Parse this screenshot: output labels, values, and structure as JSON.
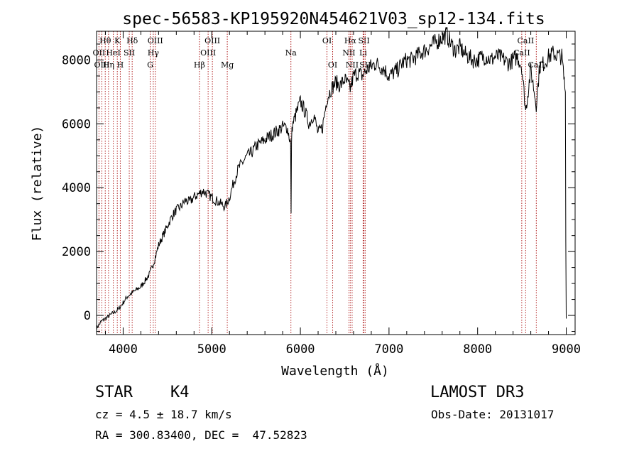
{
  "chart_data": {
    "type": "line",
    "title": "spec-56583-KP195920N454621V03_sp12-134.fits",
    "xlabel": "Wavelength (Å)",
    "ylabel": "Flux (relative)",
    "xlim": [
      3700,
      9100
    ],
    "ylim": [
      -600,
      8900
    ],
    "xticks": [
      4000,
      5000,
      6000,
      7000,
      8000,
      9000
    ],
    "yticks": [
      0,
      2000,
      4000,
      6000,
      8000
    ],
    "series": [
      {
        "name": "spectrum",
        "x": [
          3700,
          3750,
          3800,
          3850,
          3900,
          3950,
          4000,
          4050,
          4100,
          4150,
          4200,
          4250,
          4300,
          4350,
          4400,
          4450,
          4500,
          4550,
          4600,
          4650,
          4700,
          4750,
          4800,
          4850,
          4900,
          4950,
          5000,
          5050,
          5100,
          5150,
          5200,
          5250,
          5300,
          5350,
          5400,
          5450,
          5500,
          5550,
          5600,
          5650,
          5700,
          5750,
          5800,
          5850,
          5890,
          5895,
          5900,
          5905,
          5910,
          5950,
          6000,
          6050,
          6100,
          6150,
          6200,
          6250,
          6300,
          6350,
          6400,
          6450,
          6500,
          6563,
          6600,
          6650,
          6700,
          6750,
          6800,
          6850,
          6900,
          6950,
          7000,
          7050,
          7100,
          7150,
          7200,
          7250,
          7300,
          7350,
          7400,
          7450,
          7500,
          7550,
          7600,
          7650,
          7700,
          7750,
          7800,
          7850,
          7900,
          7950,
          8000,
          8050,
          8100,
          8150,
          8200,
          8250,
          8300,
          8350,
          8400,
          8450,
          8498,
          8542,
          8600,
          8662,
          8700,
          8750,
          8800,
          8850,
          8900,
          8950,
          8990,
          8995,
          9000
        ],
        "y": [
          -400,
          -200,
          -100,
          0,
          100,
          200,
          400,
          600,
          700,
          800,
          900,
          1100,
          1300,
          1700,
          2200,
          2500,
          2800,
          3100,
          3300,
          3400,
          3600,
          3550,
          3700,
          3800,
          3900,
          3800,
          3700,
          3600,
          3500,
          3400,
          3700,
          4200,
          4600,
          4800,
          5000,
          5100,
          5300,
          5400,
          5500,
          5600,
          5700,
          5800,
          5900,
          5900,
          5400,
          3200,
          5400,
          5900,
          5950,
          6300,
          6700,
          6400,
          6000,
          6300,
          5700,
          5900,
          6800,
          7100,
          7300,
          7200,
          7400,
          7100,
          7500,
          7600,
          7500,
          7700,
          7800,
          7900,
          7800,
          7700,
          7500,
          7600,
          7700,
          7900,
          8000,
          8000,
          8100,
          8200,
          8300,
          8400,
          8500,
          8600,
          8700,
          8800,
          8500,
          8300,
          8400,
          8200,
          8100,
          8000,
          8000,
          8100,
          8100,
          8000,
          8100,
          8100,
          8000,
          7900,
          8000,
          8100,
          7800,
          6400,
          7700,
          6600,
          7800,
          7900,
          8100,
          8200,
          8150,
          8100,
          7000,
          2300,
          -100
        ]
      }
    ],
    "spectral_lines": [
      {
        "label": "Hθ",
        "x": 3798,
        "row": 1
      },
      {
        "label": "OII",
        "x": 3727,
        "row": 2
      },
      {
        "label": "OIII",
        "x": 3760,
        "row": 3
      },
      {
        "label": "K",
        "x": 3934,
        "row": 1
      },
      {
        "label": "HeI",
        "x": 3889,
        "row": 2
      },
      {
        "label": "Hη",
        "x": 3835,
        "row": 3
      },
      {
        "label": "Hδ",
        "x": 4102,
        "row": 1
      },
      {
        "label": "SII",
        "x": 4069,
        "row": 2
      },
      {
        "label": "H",
        "x": 3968,
        "row": 3
      },
      {
        "label": "OIII",
        "x": 4363,
        "row": 1
      },
      {
        "label": "Hγ",
        "x": 4340,
        "row": 2
      },
      {
        "label": "G",
        "x": 4305,
        "row": 3
      },
      {
        "label": "Hβ",
        "x": 4861,
        "row": 3
      },
      {
        "label": "OIII",
        "x": 5007,
        "row": 1
      },
      {
        "label": "OIII",
        "x": 4959,
        "row": 2
      },
      {
        "label": "Mg",
        "x": 5175,
        "row": 3
      },
      {
        "label": "Na",
        "x": 5893,
        "row": 2
      },
      {
        "label": "OI",
        "x": 6300,
        "row": 1
      },
      {
        "label": "OI",
        "x": 6364,
        "row": 3
      },
      {
        "label": "Hα",
        "x": 6563,
        "row": 1
      },
      {
        "label": "NII",
        "x": 6548,
        "row": 2
      },
      {
        "label": "NII",
        "x": 6584,
        "row": 3
      },
      {
        "label": "SII",
        "x": 6717,
        "row": 1
      },
      {
        "label": "Li",
        "x": 6708,
        "row": 2
      },
      {
        "label": "SII",
        "x": 6731,
        "row": 3
      },
      {
        "label": "CaII",
        "x": 8542,
        "row": 1
      },
      {
        "label": "CaII",
        "x": 8498,
        "row": 2
      },
      {
        "label": "CaII",
        "x": 8662,
        "row": 3
      }
    ]
  },
  "info": {
    "object_class": "STAR",
    "subclass": "K4",
    "survey": "LAMOST DR3",
    "redshift": "cz = 4.5 ± 18.7 km/s",
    "obs_date": "Obs-Date: 20131017",
    "coords": "RA = 300.83400, DEC =  47.52823"
  },
  "colors": {
    "spectrum": "#000000",
    "line_marker": "#b22222",
    "axis": "#000000"
  }
}
